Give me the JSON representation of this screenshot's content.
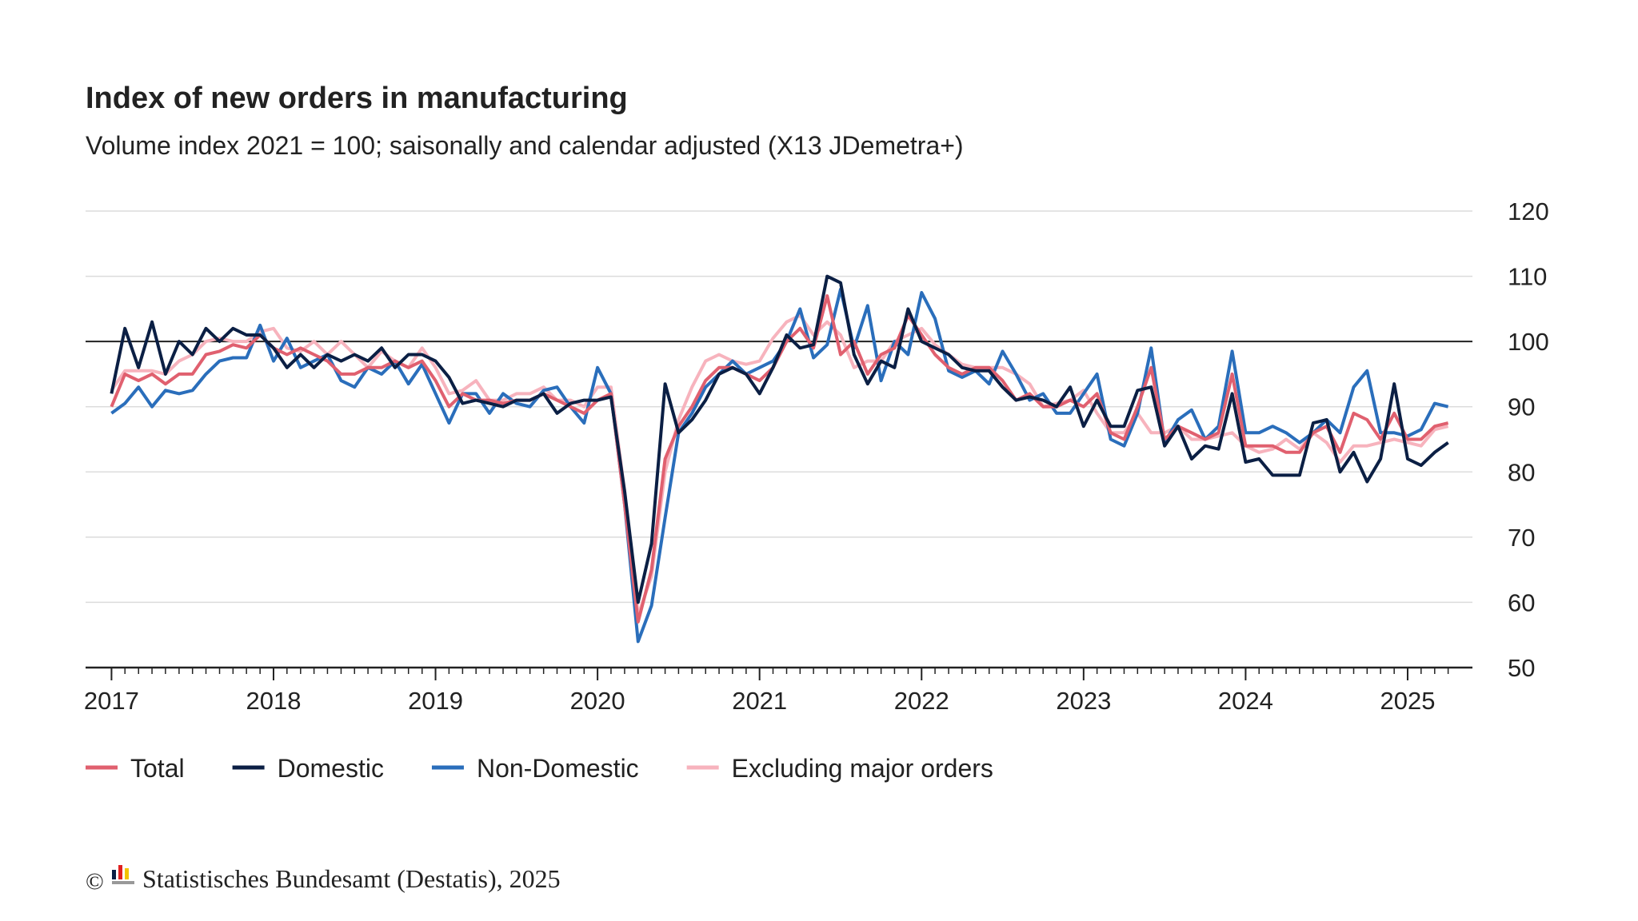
{
  "chart_data": {
    "type": "line",
    "title": "Index of new orders in manufacturing",
    "subtitle": "Volume index 2021 = 100; saisonally and calendar adjusted (X13 JDemetra+)",
    "copyright": "©",
    "source": "Statistisches Bundesamt (Destatis), 2025",
    "xlim": [
      2016.84,
      2025.4
    ],
    "xticks": [
      2017,
      2018,
      2019,
      2020,
      2021,
      2022,
      2023,
      2024,
      2025
    ],
    "ylim": [
      50,
      120
    ],
    "yticks": [
      50,
      60,
      70,
      80,
      90,
      100,
      110,
      120
    ],
    "reference_line": 100,
    "grid": true,
    "x": [
      2017,
      2017.083,
      2017.167,
      2017.25,
      2017.333,
      2017.417,
      2017.5,
      2017.583,
      2017.667,
      2017.75,
      2017.833,
      2017.917,
      2018,
      2018.083,
      2018.167,
      2018.25,
      2018.333,
      2018.417,
      2018.5,
      2018.583,
      2018.667,
      2018.75,
      2018.833,
      2018.917,
      2019,
      2019.083,
      2019.167,
      2019.25,
      2019.333,
      2019.417,
      2019.5,
      2019.583,
      2019.667,
      2019.75,
      2019.833,
      2019.917,
      2020,
      2020.083,
      2020.167,
      2020.25,
      2020.333,
      2020.417,
      2020.5,
      2020.583,
      2020.667,
      2020.75,
      2020.833,
      2020.917,
      2021,
      2021.083,
      2021.167,
      2021.25,
      2021.333,
      2021.417,
      2021.5,
      2021.583,
      2021.667,
      2021.75,
      2021.833,
      2021.917,
      2022,
      2022.083,
      2022.167,
      2022.25,
      2022.333,
      2022.417,
      2022.5,
      2022.583,
      2022.667,
      2022.75,
      2022.833,
      2022.917,
      2023,
      2023.083,
      2023.167,
      2023.25,
      2023.333,
      2023.417,
      2023.5,
      2023.583,
      2023.667,
      2023.75,
      2023.833,
      2023.917,
      2024,
      2024.083,
      2024.167,
      2024.25,
      2024.333,
      2024.417,
      2024.5,
      2024.583,
      2024.667,
      2024.75,
      2024.833,
      2024.917,
      2025,
      2025.083,
      2025.167,
      2025.25
    ],
    "series": [
      {
        "name": "Total",
        "color": "#e0606f",
        "values": [
          90,
          95,
          94,
          95,
          93.5,
          95,
          95,
          98,
          98.5,
          99.5,
          99,
          101,
          99,
          98,
          99,
          98,
          97,
          95,
          95,
          96,
          96,
          97,
          96,
          97,
          94,
          90,
          92,
          91,
          91,
          90.5,
          91,
          91,
          92,
          91,
          90,
          89,
          91,
          92,
          75,
          57,
          65,
          82,
          87,
          90,
          94,
          96,
          96,
          95,
          94,
          96,
          100,
          102,
          99,
          107,
          98,
          100,
          95,
          98,
          99,
          104,
          101,
          98,
          96,
          95,
          96,
          96,
          94,
          91,
          92,
          90,
          90,
          91,
          90,
          92,
          86,
          85,
          90,
          96,
          85,
          87,
          86,
          85,
          86,
          95,
          84,
          84,
          84,
          83,
          83,
          86,
          87,
          83,
          89,
          88,
          85,
          89,
          85,
          85,
          87,
          87.5
        ]
      },
      {
        "name": "Domestic",
        "color": "#0b1f44",
        "values": [
          92,
          102,
          96,
          103,
          95,
          100,
          98,
          102,
          100,
          102,
          101,
          101,
          99,
          96,
          98,
          96,
          98,
          97,
          98,
          97,
          99,
          96,
          98,
          98,
          97,
          94.5,
          90.5,
          91,
          90.5,
          90,
          91,
          91,
          92,
          89,
          90.5,
          91,
          91,
          91.5,
          77,
          60,
          69,
          93.5,
          86,
          88,
          91,
          95,
          96,
          95,
          92,
          96,
          101,
          99,
          99.5,
          110,
          109,
          98,
          93.5,
          97,
          96,
          105,
          100,
          99,
          98,
          96,
          95.5,
          95.5,
          93,
          91,
          91.5,
          91,
          90,
          93,
          87,
          91,
          87,
          87,
          92.5,
          93,
          84,
          87,
          82,
          84,
          83.5,
          92,
          81.5,
          82,
          79.5,
          79.5,
          79.5,
          87.5,
          88,
          80,
          83,
          78.5,
          82,
          93.5,
          82,
          81,
          83,
          84.5
        ]
      },
      {
        "name": "Non-Domestic",
        "color": "#2a6ebb",
        "values": [
          89,
          90.5,
          93,
          90,
          92.5,
          92,
          92.5,
          95,
          97,
          97.5,
          97.5,
          102.5,
          97,
          100.5,
          96,
          97,
          98,
          94,
          93,
          96,
          95,
          97,
          93.5,
          96.5,
          92,
          87.5,
          92,
          92,
          89,
          92,
          90.5,
          90,
          92.5,
          93,
          90,
          87.5,
          96,
          92,
          75,
          54,
          59.5,
          73,
          86,
          89,
          93,
          95,
          97,
          95,
          96,
          97,
          100,
          105,
          97.5,
          99.5,
          108,
          99,
          105.5,
          94,
          100,
          98,
          107.5,
          103.5,
          95.5,
          94.5,
          95.5,
          93.5,
          98.5,
          95,
          91,
          92,
          89,
          89,
          92,
          95,
          85,
          84,
          89,
          99,
          84.5,
          88,
          89.5,
          85,
          87,
          98.5,
          86,
          86,
          87,
          86,
          84.5,
          86,
          88,
          86,
          93,
          95.5,
          86,
          86,
          85.5,
          86.5,
          90.5,
          90
        ]
      },
      {
        "name": "Excluding major orders",
        "color": "#f7b3bd",
        "values": [
          92.5,
          95.5,
          95.5,
          95.5,
          95,
          97,
          98,
          100,
          100.5,
          100,
          100,
          101.5,
          102,
          99,
          98.5,
          100,
          98,
          100,
          98,
          96,
          98.5,
          97,
          96,
          99,
          96,
          92,
          92.5,
          94,
          91,
          91,
          92,
          92,
          93,
          91,
          91,
          90,
          93,
          93,
          77,
          58,
          64,
          80,
          88,
          93,
          97,
          98,
          97,
          96.5,
          97,
          100.5,
          103,
          104,
          101,
          103,
          101,
          96,
          97,
          97,
          100,
          101,
          102,
          99.5,
          98,
          96.5,
          96,
          96,
          96,
          95,
          93.5,
          90,
          90.5,
          91,
          92.5,
          89,
          86,
          86,
          89,
          86,
          86,
          87,
          85,
          85,
          85.5,
          86,
          84,
          83,
          83.5,
          85,
          83.5,
          86,
          84.5,
          81.5,
          84,
          84,
          84.5,
          85,
          84.5,
          84,
          86.5,
          87
        ]
      }
    ]
  }
}
